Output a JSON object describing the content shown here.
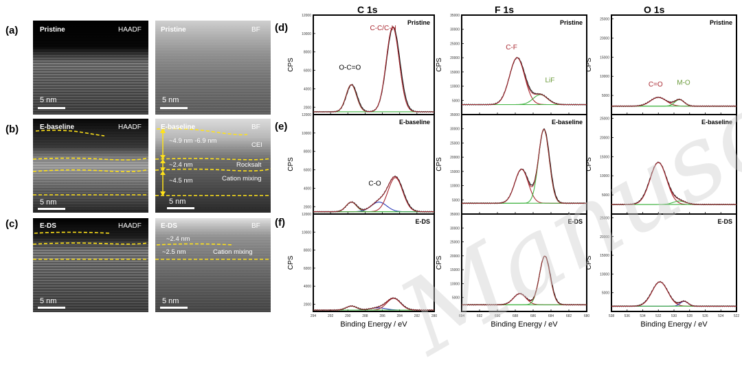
{
  "panels": {
    "a": "(a)",
    "b": "(b)",
    "c": "(c)",
    "d": "(d)",
    "e": "(e)",
    "f": "(f)"
  },
  "tem": {
    "row_a": {
      "left_tag": "Pristine",
      "left_mode": "HAADF",
      "left_scale": "5 nm",
      "right_tag": "Pristine",
      "right_mode": "BF",
      "right_scale": "5 nm"
    },
    "row_b": {
      "left_tag": "E-baseline",
      "left_mode": "HAADF",
      "left_scale": "5 nm",
      "right_tag": "E-baseline",
      "right_mode": "BF",
      "right_scale": "5 nm",
      "cei_label": "CEI",
      "rocksalt_label": "Rocksalt",
      "cation_mixing_label": "Cation mixing",
      "thickness_cei": "~4.9 nm -6.9 nm",
      "thickness_rocksalt": "~2.4 nm",
      "thickness_mixing": "~4.5 nm"
    },
    "row_c": {
      "left_tag": "E-DS",
      "left_mode": "HAADF",
      "left_scale": "5 nm",
      "right_tag": "E-DS",
      "right_mode": "BF",
      "right_scale": "5 nm",
      "thickness_top": "~2.4 nm",
      "thickness_mixing": "~2.5 nm",
      "cation_mixing_label": "Cation mixing"
    }
  },
  "colors": {
    "measured": "#1a1a1a",
    "fit_red": "#a8272f",
    "fit_green": "#3fb23f",
    "fit_blue": "#2b3bb8",
    "annotation_red": "#a8272f",
    "annotation_green": "#6a9a3a",
    "dash": "#ffe21a"
  },
  "chart_data": [
    {
      "type": "line",
      "panel": "d",
      "column_title": "C 1s",
      "sample": "Pristine",
      "xlabel": "",
      "ylabel": "CPS",
      "xlim": [
        294,
        280
      ],
      "ylim": [
        1200,
        12000
      ],
      "xticks": [
        294,
        292,
        290,
        288,
        286,
        284,
        282,
        280
      ],
      "yticks": [
        2000,
        4000,
        6000,
        8000,
        10000,
        12000
      ],
      "peaks": [
        {
          "label": "O-C=O",
          "center": 289.6,
          "height": 2950,
          "sigma": 0.6,
          "color": "green"
        },
        {
          "label": "C-C/C-H",
          "center": 284.8,
          "height": 9200,
          "sigma": 0.75,
          "color": "red"
        }
      ],
      "baseline": 1500,
      "measured_shift": 0.3
    },
    {
      "type": "line",
      "panel": "e",
      "sample": "E-baseline",
      "xlabel": "",
      "ylabel": "CPS",
      "xlim": [
        294,
        280
      ],
      "ylim": [
        1200,
        12000
      ],
      "xticks": [
        294,
        292,
        290,
        288,
        286,
        284,
        282,
        280
      ],
      "yticks": [
        2000,
        4000,
        6000,
        8000,
        10000,
        12000
      ],
      "peaks": [
        {
          "label": "",
          "center": 289.6,
          "height": 1050,
          "sigma": 0.6,
          "color": "green"
        },
        {
          "label": "C-O",
          "center": 286.4,
          "height": 1050,
          "sigma": 0.9,
          "color": "blue"
        },
        {
          "label": "",
          "center": 284.5,
          "height": 3700,
          "sigma": 0.85,
          "color": "red"
        }
      ],
      "baseline": 1450,
      "measured_shift": 0.2
    },
    {
      "type": "line",
      "panel": "f",
      "sample": "E-DS",
      "xlabel": "Binding Energy / eV",
      "ylabel": "CPS",
      "xlim": [
        294,
        280
      ],
      "ylim": [
        1200,
        12000
      ],
      "xticks": [
        294,
        292,
        290,
        288,
        286,
        284,
        282,
        280
      ],
      "yticks": [
        2000,
        4000,
        6000,
        8000,
        10000,
        12000
      ],
      "peaks": [
        {
          "label": "",
          "center": 289.6,
          "height": 450,
          "sigma": 0.6,
          "color": "green"
        },
        {
          "label": "",
          "center": 286.5,
          "height": 250,
          "sigma": 0.9,
          "color": "blue"
        },
        {
          "label": "",
          "center": 284.7,
          "height": 1300,
          "sigma": 0.8,
          "color": "red"
        }
      ],
      "baseline": 1350,
      "measured_shift": 0.15
    },
    {
      "type": "line",
      "panel": "d",
      "column_title": "F 1s",
      "sample": "Pristine",
      "xlabel": "",
      "ylabel": "CPS",
      "xlim": [
        694,
        680
      ],
      "ylim": [
        0,
        35000
      ],
      "xticks": [
        694,
        692,
        690,
        688,
        686,
        684,
        682,
        680
      ],
      "yticks": [
        5000,
        10000,
        15000,
        20000,
        25000,
        30000,
        35000
      ],
      "peaks": [
        {
          "label": "C-F",
          "center": 687.8,
          "height": 16500,
          "sigma": 0.85,
          "color": "red"
        },
        {
          "label": "LiF",
          "center": 685.2,
          "height": 3500,
          "sigma": 0.8,
          "color": "green"
        }
      ],
      "baseline": 3500,
      "measured_shift": 0.15
    },
    {
      "type": "line",
      "panel": "e",
      "sample": "E-baseline",
      "xlabel": "",
      "ylabel": "CPS",
      "xlim": [
        694,
        680
      ],
      "ylim": [
        0,
        35000
      ],
      "xticks": [
        694,
        692,
        690,
        688,
        686,
        684,
        682,
        680
      ],
      "yticks": [
        5000,
        10000,
        15000,
        20000,
        25000,
        30000,
        35000
      ],
      "peaks": [
        {
          "label": "",
          "center": 687.3,
          "height": 12000,
          "sigma": 0.75,
          "color": "red"
        },
        {
          "label": "",
          "center": 684.8,
          "height": 26000,
          "sigma": 0.6,
          "color": "green"
        }
      ],
      "baseline": 3800,
      "measured_shift": 0.15
    },
    {
      "type": "line",
      "panel": "f",
      "sample": "E-DS",
      "xlabel": "Binding Energy / eV",
      "ylabel": "CPS",
      "xlim": [
        694,
        680
      ],
      "ylim": [
        0,
        35000
      ],
      "xticks": [
        694,
        692,
        690,
        688,
        686,
        684,
        682,
        680
      ],
      "yticks": [
        5000,
        10000,
        15000,
        20000,
        25000,
        30000,
        35000
      ],
      "peaks": [
        {
          "label": "",
          "center": 687.5,
          "height": 4000,
          "sigma": 0.7,
          "color": "red"
        },
        {
          "label": "",
          "center": 684.7,
          "height": 17500,
          "sigma": 0.6,
          "color": "green"
        }
      ],
      "baseline": 2400,
      "measured_shift": 0.1
    },
    {
      "type": "line",
      "panel": "d",
      "column_title": "O 1s",
      "sample": "Pristine",
      "xlabel": "",
      "ylabel": "CPS",
      "xlim": [
        538,
        522
      ],
      "ylim": [
        0,
        26000
      ],
      "xticks": [
        538,
        536,
        534,
        532,
        530,
        528,
        526,
        524,
        522
      ],
      "yticks": [
        5000,
        10000,
        15000,
        20000,
        25000
      ],
      "peaks": [
        {
          "label": "C=O",
          "center": 532.0,
          "height": 2300,
          "sigma": 1.0,
          "color": "red"
        },
        {
          "label": "M-O",
          "center": 529.3,
          "height": 1700,
          "sigma": 0.6,
          "color": "green"
        }
      ],
      "baseline": 2200,
      "measured_shift": 0.0
    },
    {
      "type": "line",
      "panel": "e",
      "sample": "E-baseline",
      "xlabel": "",
      "ylabel": "CPS",
      "xlim": [
        538,
        522
      ],
      "ylim": [
        0,
        26000
      ],
      "xticks": [
        538,
        536,
        534,
        532,
        530,
        528,
        526,
        524,
        522
      ],
      "yticks": [
        5000,
        10000,
        15000,
        20000,
        25000
      ],
      "peaks": [
        {
          "label": "",
          "center": 532.0,
          "height": 11000,
          "sigma": 1.05,
          "color": "red"
        },
        {
          "label": "",
          "center": 529.3,
          "height": 900,
          "sigma": 0.8,
          "color": "green"
        }
      ],
      "baseline": 2500,
      "measured_shift": 0.0
    },
    {
      "type": "line",
      "panel": "f",
      "sample": "E-DS",
      "xlabel": "Binding Energy / eV",
      "ylabel": "CPS",
      "xlim": [
        538,
        522
      ],
      "ylim": [
        0,
        26000
      ],
      "xticks": [
        538,
        536,
        534,
        532,
        530,
        528,
        526,
        524,
        522
      ],
      "yticks": [
        5000,
        10000,
        15000,
        20000,
        25000
      ],
      "peaks": [
        {
          "label": "",
          "center": 531.8,
          "height": 6500,
          "sigma": 1.0,
          "color": "red"
        },
        {
          "label": "",
          "center": 528.7,
          "height": 1300,
          "sigma": 0.5,
          "color": "blue"
        }
      ],
      "baseline": 1400,
      "measured_shift": 0.0
    }
  ]
}
